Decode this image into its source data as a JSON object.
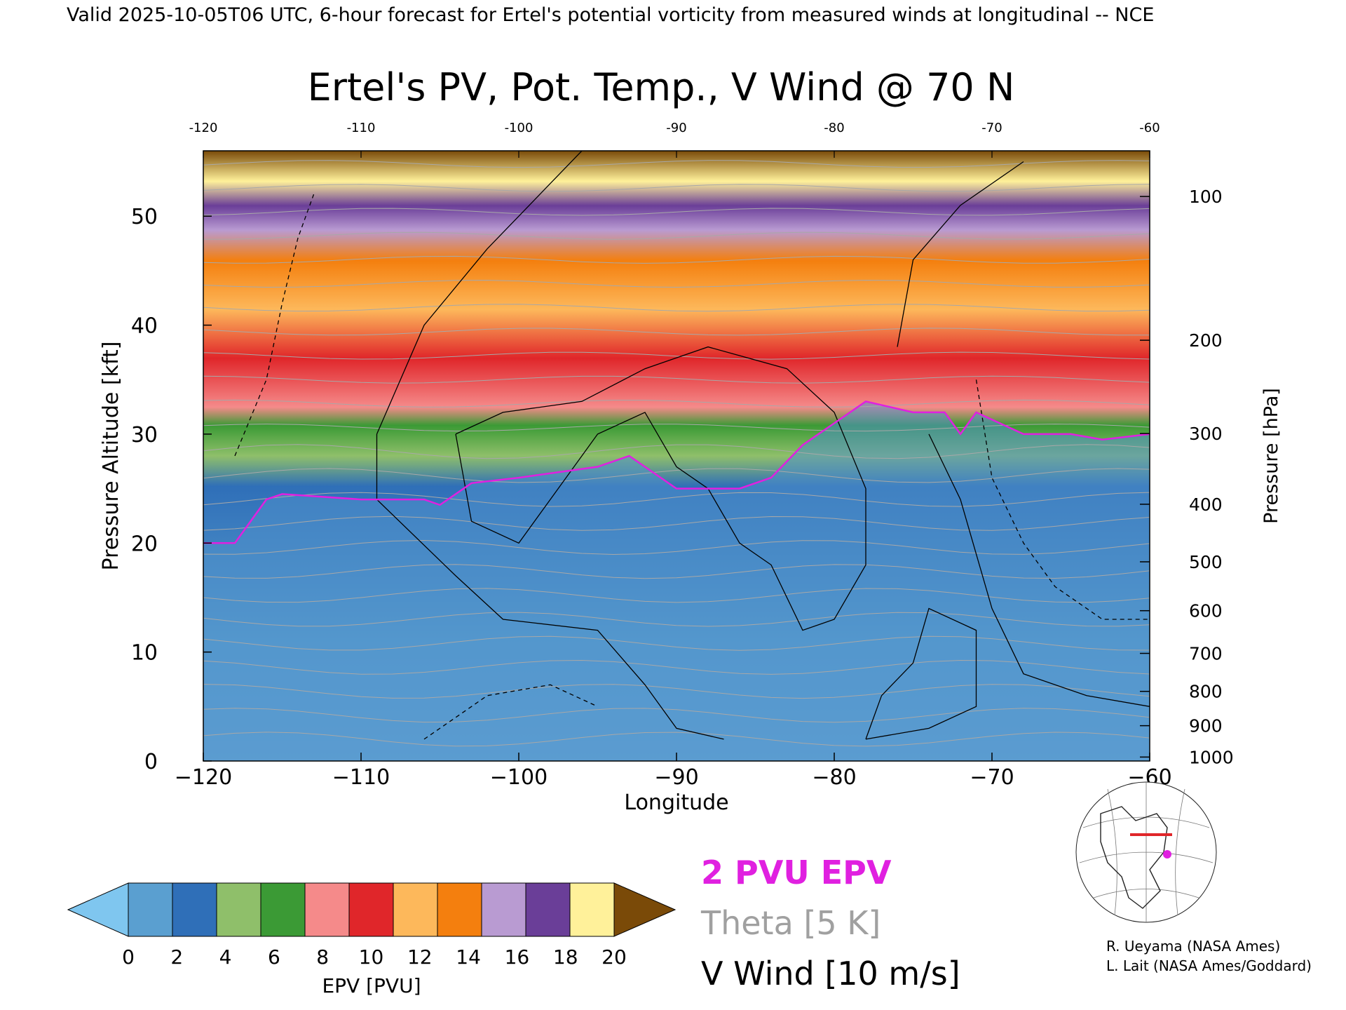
{
  "header": {
    "valid_line": "Valid 2025-10-05T06 UTC, 6-hour forecast for Ertel's potential vorticity from measured winds at longitudinal -- NCE"
  },
  "chart_data": {
    "type": "heatmap",
    "title": "Ertel's PV, Pot. Temp., V Wind @ 70 N",
    "xlabel": "Longitude",
    "ylabel": "Pressure Altitude [kft]",
    "y2label": "Pressure [hPa]",
    "xlim": [
      -120,
      -60
    ],
    "ylim": [
      0,
      56
    ],
    "x_ticks": [
      "-120",
      "-110",
      "-100",
      "-90",
      "-80",
      "-70",
      "-60"
    ],
    "top_ticks": [
      "-120",
      "-110",
      "-100",
      "-90",
      "-80",
      "-70",
      "-60"
    ],
    "y_ticks": [
      "0",
      "10",
      "20",
      "30",
      "40",
      "50"
    ],
    "pressure_ticks": [
      {
        "label": "100",
        "p": 100
      },
      {
        "label": "200",
        "p": 200
      },
      {
        "label": "300",
        "p": 300
      },
      {
        "label": "400",
        "p": 400
      },
      {
        "label": "500",
        "p": 500
      },
      {
        "label": "600",
        "p": 600
      },
      {
        "label": "700",
        "p": 700
      },
      {
        "label": "800",
        "p": 800
      },
      {
        "label": "900",
        "p": 900
      },
      {
        "label": "1000",
        "p": 1000
      }
    ],
    "tropopause_2pvu_kft": {
      "lon": [
        -120,
        -118,
        -116,
        -115,
        -110,
        -106,
        -105,
        -103,
        -100,
        -95,
        -93,
        -90,
        -86,
        -84,
        -82,
        -80,
        -78,
        -75,
        -73,
        -72,
        -71,
        -68,
        -65,
        -63,
        -60
      ],
      "kft": [
        20,
        20,
        24,
        24.5,
        24,
        24,
        23.5,
        25.5,
        26,
        27,
        28,
        25,
        25,
        26,
        29,
        31,
        33,
        32,
        32,
        30,
        32,
        30,
        30,
        29.5,
        30
      ]
    },
    "theta_contours_K": [
      300,
      310,
      320,
      330,
      340,
      350,
      360,
      370,
      380,
      390,
      400,
      410,
      420
    ],
    "vwind_contours_ms": [
      -10,
      0,
      10
    ],
    "colorbar": {
      "label": "EPV [PVU]",
      "ticks": [
        "0",
        "2",
        "4",
        "6",
        "8",
        "10",
        "12",
        "14",
        "16",
        "18",
        "20"
      ],
      "colors": [
        "#7fc6ef",
        "#5a9fd0",
        "#2f6fb8",
        "#8fbf6a",
        "#3b9a35",
        "#f58a8a",
        "#e0262a",
        "#fdb85b",
        "#f47f0e",
        "#b99bd2",
        "#6a3e98",
        "#fff19a",
        "#7a4a08"
      ]
    },
    "legend": {
      "pvu": "2 PVU EPV",
      "theta": "Theta [5 K]",
      "wind": "V Wind [10 m/s]"
    }
  },
  "credits": {
    "line1": "R. Ueyama (NASA Ames)",
    "line2": "L. Lait (NASA Ames/Goddard)"
  },
  "colors": {
    "pvu_line": "#e020e0",
    "theta_line": "#9a9a9a",
    "wind_line": "#000000"
  }
}
